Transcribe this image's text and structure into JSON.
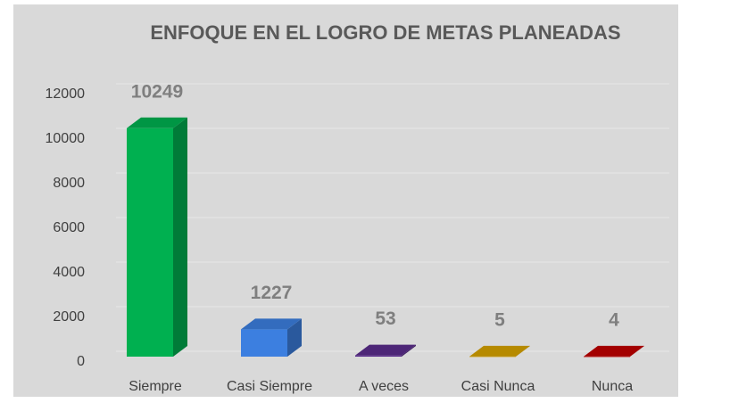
{
  "chart_data": {
    "type": "bar3d",
    "title": "ENFOQUE EN EL LOGRO DE METAS PLANEADAS",
    "categories": [
      "Siempre",
      "Casi Siempre",
      "A veces",
      "Casi Nunca",
      "Nunca"
    ],
    "values": [
      10249,
      1227,
      53,
      5,
      4
    ],
    "colors": [
      "#00b050",
      "#3c7fe0",
      "#5a2d8c",
      "#d6a200",
      "#c00000"
    ],
    "ylim": [
      0,
      12000
    ],
    "yticks": [
      0,
      2000,
      4000,
      6000,
      8000,
      10000,
      12000
    ],
    "grid": true
  }
}
